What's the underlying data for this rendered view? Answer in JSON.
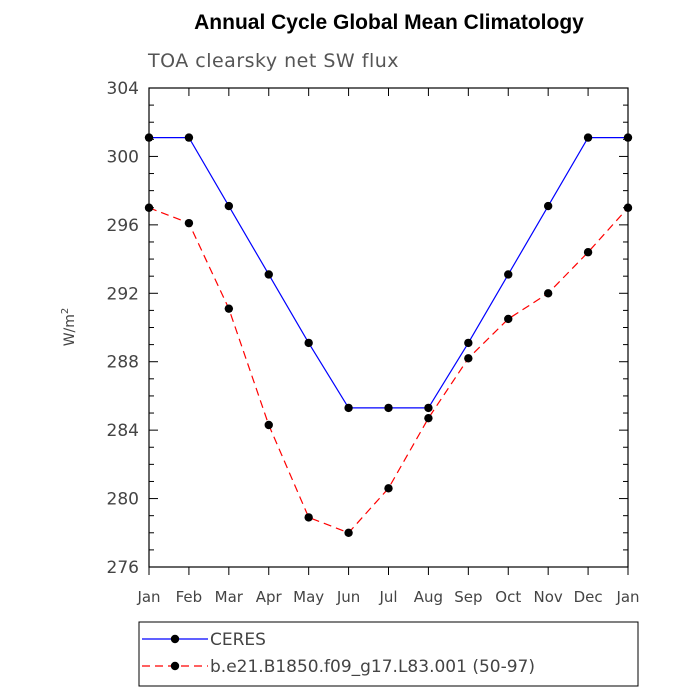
{
  "chart_data": {
    "type": "line",
    "title": "Annual Cycle Global Mean Climatology",
    "subtitle": "TOA clearsky net SW flux",
    "xlabel": "",
    "ylabel": "W/m",
    "ylabel_superscript": "2",
    "categories": [
      "Jan",
      "Feb",
      "Mar",
      "Apr",
      "May",
      "Jun",
      "Jul",
      "Aug",
      "Sep",
      "Oct",
      "Nov",
      "Dec",
      "Jan"
    ],
    "ylim": [
      276,
      304
    ],
    "yticks": [
      276,
      280,
      284,
      288,
      292,
      296,
      300,
      304
    ],
    "series": [
      {
        "name": "CERES",
        "color": "#0000ff",
        "style": "solid",
        "values": [
          301.1,
          301.1,
          297.1,
          293.1,
          289.1,
          285.3,
          285.3,
          285.3,
          289.1,
          293.1,
          297.1,
          301.1,
          301.1
        ]
      },
      {
        "name": "b.e21.B1850.f09_g17.L83.001 (50-97)",
        "color": "#ff0000",
        "style": "dashed",
        "values": [
          297.0,
          296.1,
          291.1,
          284.3,
          278.9,
          278.0,
          280.6,
          284.7,
          288.2,
          290.5,
          292.0,
          294.4,
          297.0
        ]
      }
    ],
    "legend_placement": "bottom"
  }
}
